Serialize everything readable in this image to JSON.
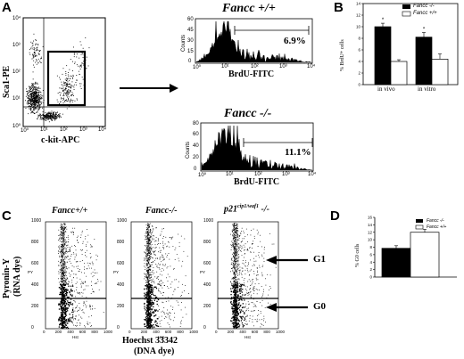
{
  "panels": {
    "A": {
      "letter": "A",
      "dotplot": {
        "ylabel": "Sca1-PE",
        "xlabel": "c-kit-APC",
        "xticks": [
          "10⁰",
          "10¹",
          "10²",
          "10³",
          "10⁴"
        ],
        "yticks": [
          "10⁰",
          "10¹",
          "10²",
          "10³",
          "10⁴"
        ]
      },
      "hist_top": {
        "title": "Fancc +/+",
        "xlabel": "BrdU-FITC",
        "ylabel": "Counts",
        "percent": "6.9%",
        "xticks": [
          "10⁰",
          "10¹",
          "10²",
          "10³",
          "10⁴"
        ],
        "yticks": [
          "0",
          "15",
          "30",
          "45",
          "60"
        ]
      },
      "hist_bottom": {
        "title": "Fancc -/-",
        "xlabel": "BrdU-FITC",
        "ylabel": "Counts",
        "percent": "11.1%",
        "xticks": [
          "10⁰",
          "10¹",
          "10²",
          "10³",
          "10⁴"
        ],
        "yticks": [
          "0",
          "20",
          "40",
          "60",
          "80"
        ]
      }
    },
    "B": {
      "letter": "B",
      "legend": [
        "Fancc -/-",
        "Fancc +/+"
      ],
      "chart_data": {
        "type": "bar",
        "categories": [
          "in vivo",
          "in vitro"
        ],
        "series": [
          {
            "name": "Fancc -/-",
            "values": [
              10.0,
              8.2
            ],
            "errors": [
              0.6,
              0.8
            ],
            "color": "#000000"
          },
          {
            "name": "Fancc +/+",
            "values": [
              4.0,
              4.4
            ],
            "errors": [
              0.3,
              0.9
            ],
            "color": "#ffffff"
          }
        ],
        "ylabel": "% BrdU+ cells",
        "yticks": [
          "0",
          "2",
          "4",
          "6",
          "8",
          "10",
          "12",
          "14"
        ],
        "ylim": [
          0,
          14
        ],
        "significance": [
          "*",
          "*"
        ]
      }
    },
    "C": {
      "letter": "C",
      "plot_titles": [
        "Fancc+/+",
        "Fancc-/-",
        "p21",
        "cip1/waf1",
        " -/-"
      ],
      "ylabel_line1": "Pyronin-Y",
      "ylabel_line2": "(RNA dye)",
      "xlabel_line1": "Hoechst 33342",
      "xlabel_line2": "(DNA dye)",
      "axis_py": "PY",
      "axis_hst": "Hst",
      "yticks": [
        "0",
        "200",
        "400",
        "600",
        "800",
        "1000"
      ],
      "xticks": [
        "0",
        "200",
        "400",
        "600",
        "800",
        "1000"
      ],
      "gates": [
        "G1",
        "G0"
      ]
    },
    "D": {
      "letter": "D",
      "legend": [
        "Fancc -/-",
        "Fancc +/+"
      ],
      "chart_data": {
        "type": "bar",
        "categories": [
          ""
        ],
        "series": [
          {
            "name": "Fancc -/-",
            "values": [
              7.7
            ],
            "errors": [
              0.7
            ],
            "color": "#000000"
          },
          {
            "name": "Fancc +/+",
            "values": [
              12.0
            ],
            "errors": [
              0.8
            ],
            "color": "#ffffff"
          }
        ],
        "ylabel": "% G0 cells",
        "yticks": [
          "0",
          "2",
          "4",
          "6",
          "8",
          "10",
          "12",
          "14",
          "16"
        ],
        "ylim": [
          0,
          16
        ]
      }
    }
  }
}
